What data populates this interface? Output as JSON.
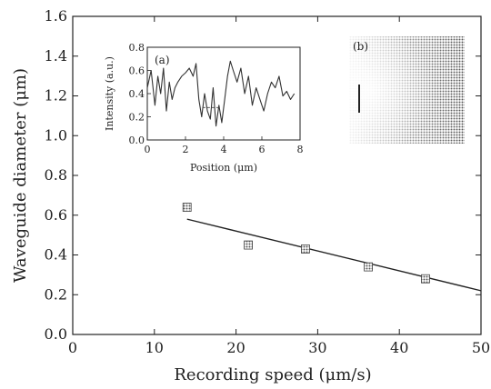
{
  "chart_data": [
    {
      "type": "scatter",
      "xlabel": "Recording speed (μm/s)",
      "ylabel": "Waveguide diameter (μm)",
      "xlim": [
        0,
        50
      ],
      "ylim": [
        0.0,
        1.6
      ],
      "xticks": [
        0,
        10,
        20,
        30,
        40,
        50
      ],
      "xtick_labels": [
        "0",
        "10",
        "20",
        "30",
        "40",
        "50"
      ],
      "yticks": [
        0.0,
        0.2,
        0.4,
        0.6,
        0.8,
        1.0,
        1.2,
        1.4,
        1.6
      ],
      "ytick_labels": [
        "0.0",
        "0.2",
        "0.4",
        "0.6",
        "0.8",
        "1.0",
        "1.2",
        "1.4",
        "1.6"
      ],
      "grid": false,
      "points": [
        {
          "x": 14,
          "y": 0.64
        },
        {
          "x": 21.5,
          "y": 0.45
        },
        {
          "x": 28.5,
          "y": 0.43
        },
        {
          "x": 36.2,
          "y": 0.34
        },
        {
          "x": 43.2,
          "y": 0.28
        }
      ],
      "fit_line": {
        "x": [
          14,
          50
        ],
        "y": [
          0.58,
          0.22
        ]
      }
    },
    {
      "type": "line",
      "panel_label": "(a)",
      "xlabel": "Position (μm)",
      "ylabel": "Intensity (a.u.)",
      "xlim": [
        0,
        8
      ],
      "ylim": [
        0.0,
        0.8
      ],
      "xticks": [
        0,
        2,
        4,
        6,
        8
      ],
      "xtick_labels": [
        "0",
        "2",
        "4",
        "6",
        "8"
      ],
      "yticks": [
        0.0,
        0.2,
        0.4,
        0.6,
        0.8
      ],
      "ytick_labels": [
        "0.0",
        "0.2",
        "0.4",
        "0.6",
        "0.8"
      ],
      "x": [
        0.0,
        0.2,
        0.4,
        0.55,
        0.7,
        0.85,
        1.0,
        1.15,
        1.3,
        1.45,
        1.6,
        1.8,
        2.0,
        2.2,
        2.4,
        2.55,
        2.7,
        2.85,
        3.0,
        3.15,
        3.3,
        3.45,
        3.6,
        3.75,
        3.9,
        4.05,
        4.2,
        4.35,
        4.5,
        4.7,
        4.9,
        5.1,
        5.3,
        5.5,
        5.7,
        5.9,
        6.1,
        6.3,
        6.5,
        6.7,
        6.9,
        7.1,
        7.3,
        7.5,
        7.7
      ],
      "y": [
        0.45,
        0.6,
        0.3,
        0.55,
        0.4,
        0.62,
        0.25,
        0.5,
        0.35,
        0.45,
        0.5,
        0.55,
        0.58,
        0.62,
        0.55,
        0.66,
        0.35,
        0.2,
        0.4,
        0.25,
        0.18,
        0.45,
        0.12,
        0.3,
        0.15,
        0.35,
        0.55,
        0.68,
        0.6,
        0.5,
        0.62,
        0.4,
        0.55,
        0.3,
        0.45,
        0.35,
        0.25,
        0.4,
        0.5,
        0.45,
        0.55,
        0.38,
        0.42,
        0.35,
        0.4
      ],
      "dashed_marker": {
        "x": [
          2.9,
          3.8
        ],
        "y": 0.28
      }
    },
    {
      "type": "image",
      "panel_label": "(b)",
      "description_mark": "vertical waveguide mark"
    }
  ]
}
